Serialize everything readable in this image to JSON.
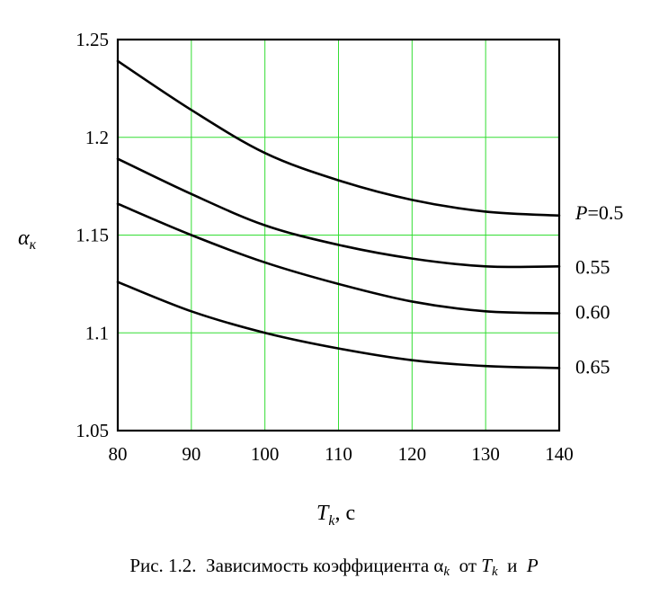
{
  "chart_data": {
    "type": "line",
    "xlabel": {
      "main": "T",
      "sub": "k",
      "rest": ", c"
    },
    "ylabel": {
      "main": "α",
      "sub": "к"
    },
    "xlim": [
      80,
      140
    ],
    "ylim": [
      1.05,
      1.25
    ],
    "x_ticks": [
      80,
      90,
      100,
      110,
      120,
      130,
      140
    ],
    "y_ticks": [
      1.05,
      1.1,
      1.15,
      1.2,
      1.25
    ],
    "x_tick_labels": [
      "80",
      "90",
      "100",
      "110",
      "120",
      "130",
      "140"
    ],
    "y_tick_labels": [
      "1.05",
      "1.1",
      "1.15",
      "1.2",
      "1.25"
    ],
    "grid": true,
    "grid_color": "#33dd33",
    "line_color": "#000000",
    "series_label_prefix": "P",
    "series": [
      {
        "name": "=0.5",
        "label_prefixed": true,
        "x": [
          80,
          90,
          100,
          110,
          120,
          130,
          140
        ],
        "y": [
          1.239,
          1.214,
          1.192,
          1.178,
          1.168,
          1.162,
          1.16
        ]
      },
      {
        "name": "0.55",
        "label_prefixed": false,
        "x": [
          80,
          90,
          100,
          110,
          120,
          130,
          140
        ],
        "y": [
          1.189,
          1.171,
          1.155,
          1.145,
          1.138,
          1.134,
          1.134
        ]
      },
      {
        "name": "0.60",
        "label_prefixed": false,
        "x": [
          80,
          90,
          100,
          110,
          120,
          130,
          140
        ],
        "y": [
          1.166,
          1.15,
          1.136,
          1.125,
          1.116,
          1.111,
          1.11
        ]
      },
      {
        "name": "0.65",
        "label_prefixed": false,
        "x": [
          80,
          90,
          100,
          110,
          120,
          130,
          140
        ],
        "y": [
          1.126,
          1.111,
          1.1,
          1.092,
          1.086,
          1.083,
          1.082
        ]
      }
    ]
  },
  "caption": {
    "prefix": "Рис. 1.2.  Зависимость коэффициента ",
    "alpha": "α",
    "alpha_sub": "k",
    "mid": "  от ",
    "t": "T",
    "t_sub": "k",
    "and": "  и  ",
    "p": "P"
  }
}
